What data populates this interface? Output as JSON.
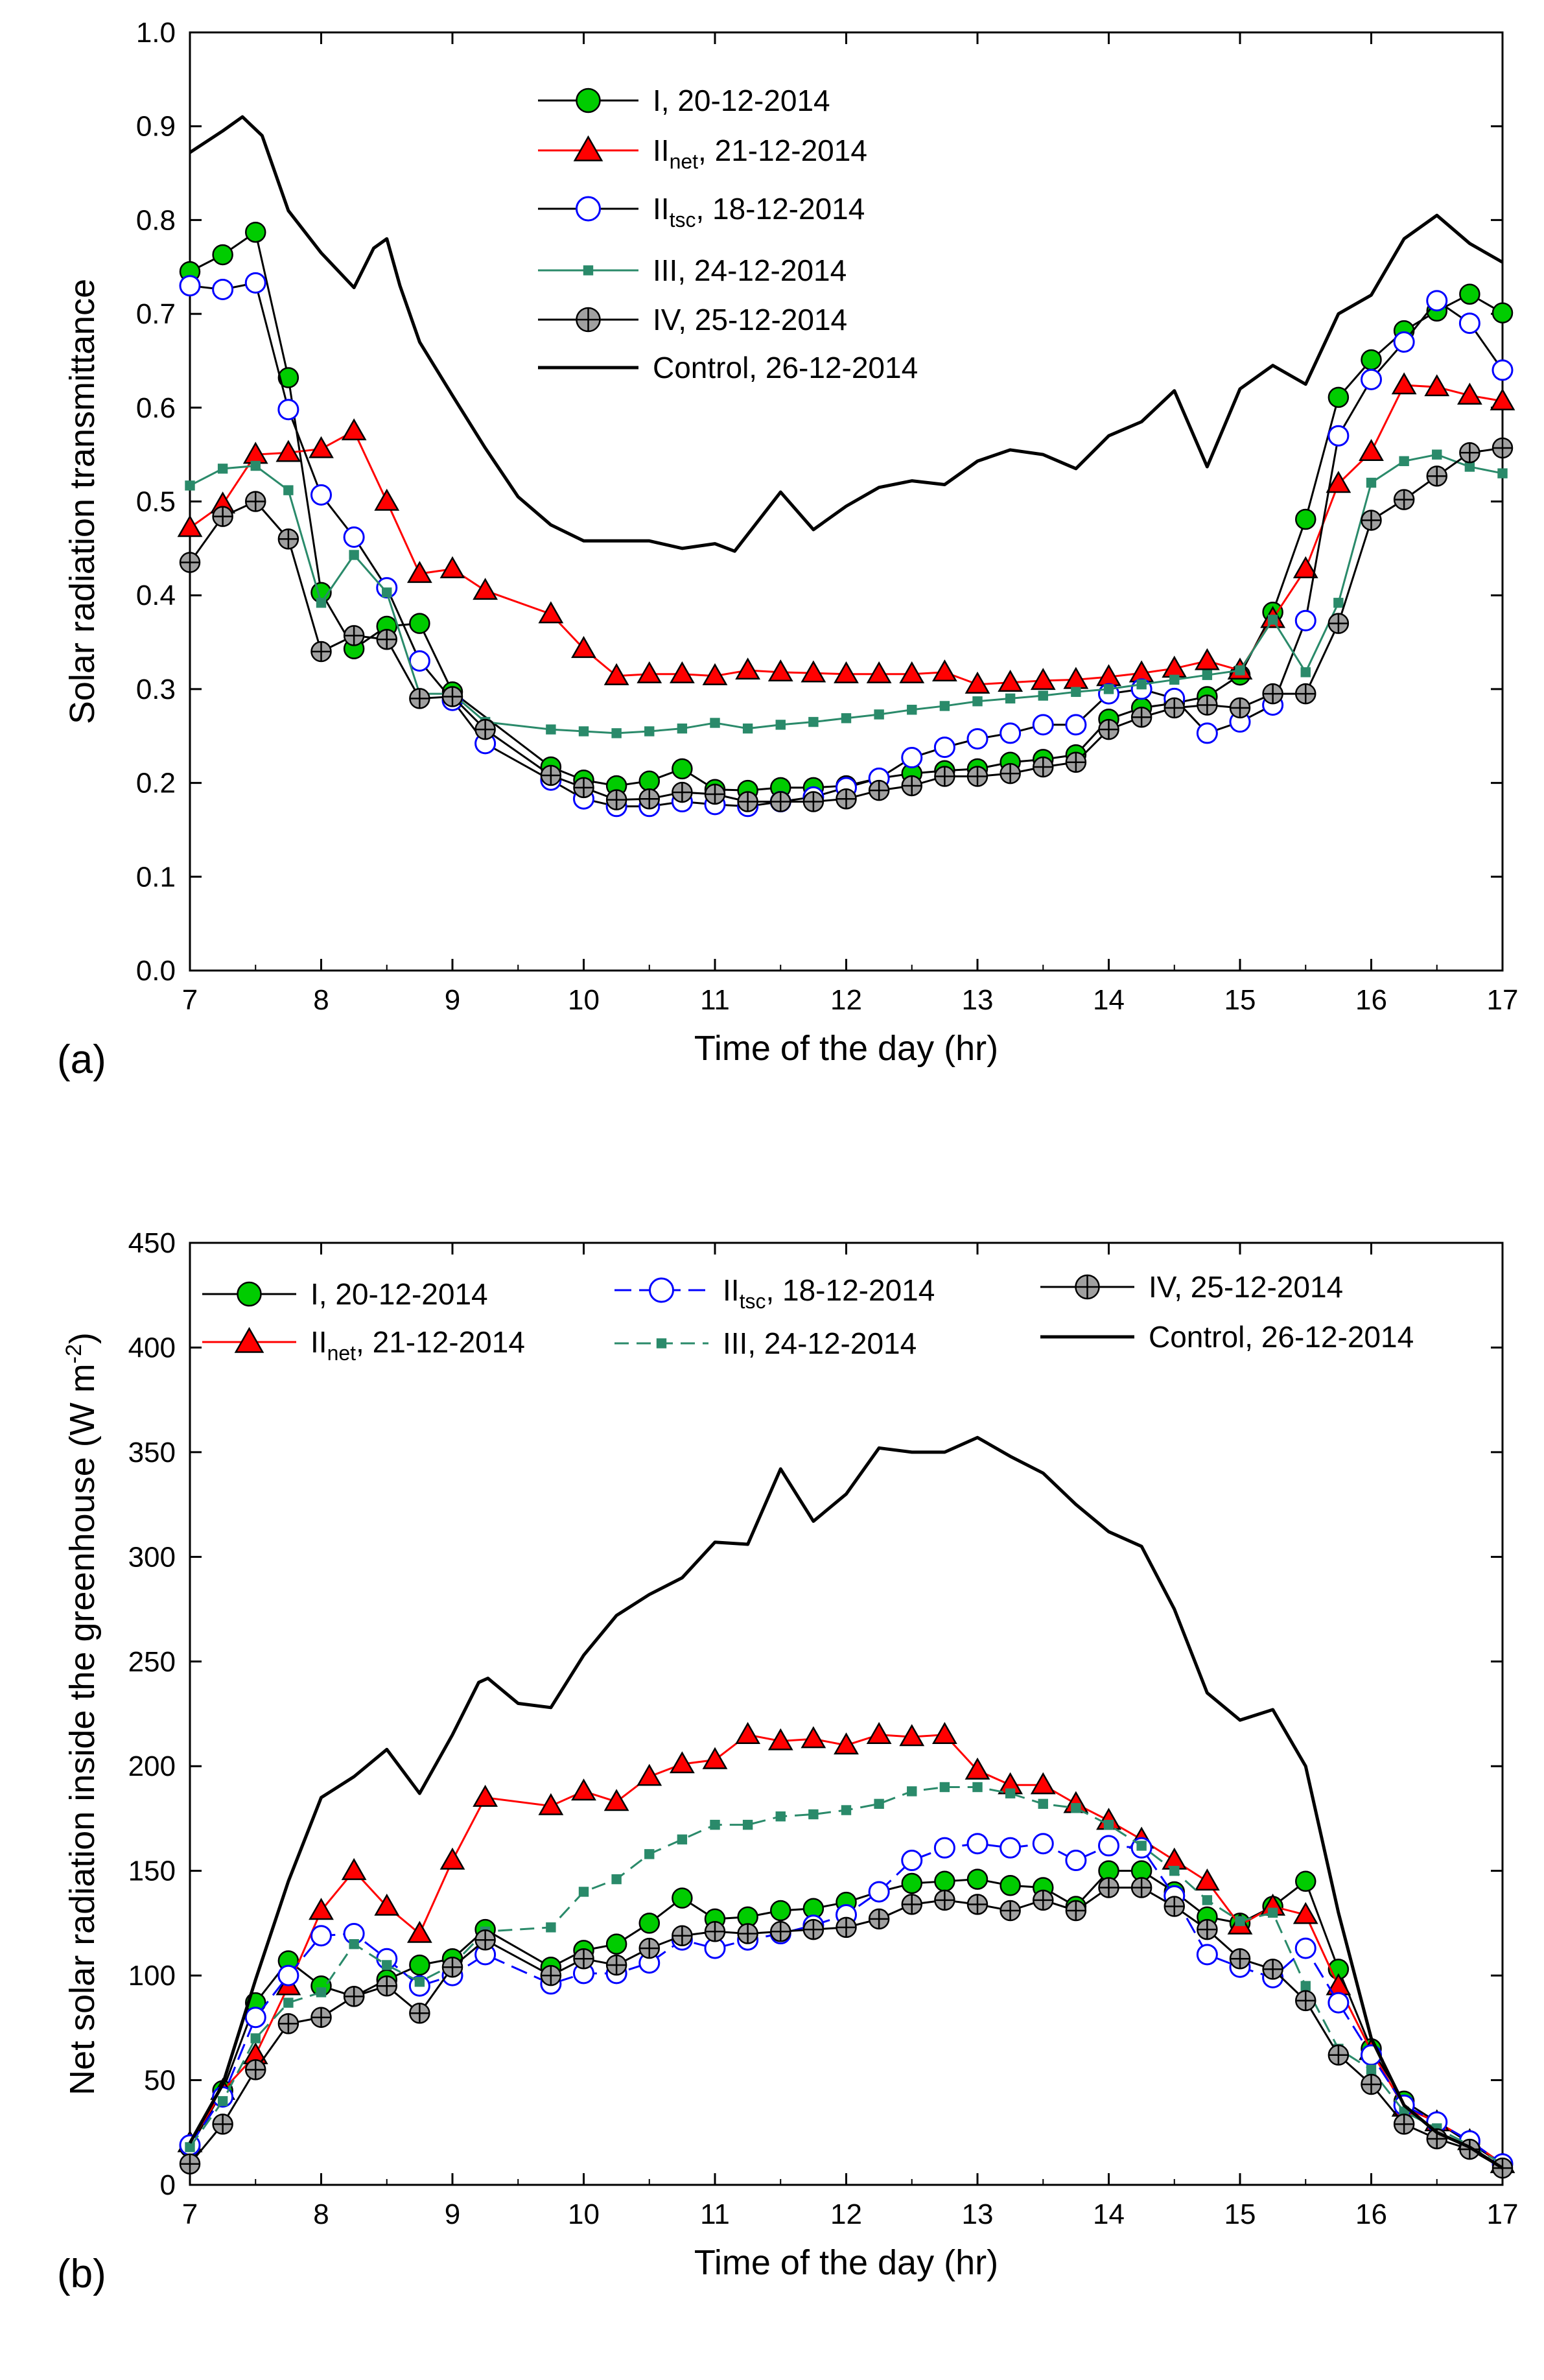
{
  "chart_data": [
    {
      "type": "line",
      "panel_label": "(a)",
      "xlabel": "Time of the day (hr)",
      "ylabel": "Solar radiation transmittance",
      "xlim": [
        7,
        17
      ],
      "ylim": [
        0,
        1.0
      ],
      "xticks": [
        "7",
        "8",
        "9",
        "10",
        "11",
        "12",
        "13",
        "14",
        "15",
        "16",
        "17"
      ],
      "yticks": [
        "0.0",
        "0.1",
        "0.2",
        "0.3",
        "0.4",
        "0.5",
        "0.6",
        "0.7",
        "0.8",
        "0.9",
        "1.0"
      ],
      "legend_position": "top-center",
      "x": [
        7,
        7.25,
        7.5,
        7.75,
        8,
        8.25,
        8.5,
        8.75,
        9,
        9.25,
        9.5,
        9.75,
        10,
        10.25,
        10.5,
        10.75,
        11,
        11.25,
        11.5,
        11.75,
        12,
        12.25,
        12.5,
        12.75,
        13,
        13.25,
        13.5,
        13.75,
        14,
        14.25,
        14.5,
        14.75,
        15,
        15.25,
        15.5,
        15.75,
        16,
        16.25,
        16.5,
        16.75,
        17
      ],
      "series": [
        {
          "name": "I, 20-12-2014",
          "name_main": "I",
          "name_sub": "",
          "name_rest": ", 20-12-2014",
          "style": "circle-green",
          "color": "#00cc00",
          "values": [
            0.745,
            0.763,
            0.787,
            0.632,
            0.403,
            0.343,
            0.367,
            0.37,
            0.297,
            null,
            null,
            0.217,
            0.203,
            0.197,
            0.202,
            0.215,
            0.193,
            0.192,
            0.195,
            0.195,
            0.197,
            0.205,
            0.21,
            0.213,
            0.215,
            0.222,
            0.225,
            0.23,
            0.268,
            0.28,
            0.285,
            0.292,
            0.315,
            0.382,
            0.481,
            0.611,
            0.651,
            0.682,
            0.703,
            0.721,
            0.701
          ]
        },
        {
          "name": "IInet, 21-12-2014",
          "name_main": "II",
          "name_sub": "net",
          "name_rest": ", 21-12-2014",
          "style": "triangle-red",
          "color": "#ff0000",
          "values": [
            0.472,
            0.497,
            0.55,
            0.552,
            0.556,
            0.575,
            0.5,
            0.423,
            0.428,
            0.405,
            null,
            0.38,
            0.343,
            0.314,
            0.316,
            0.316,
            0.314,
            0.32,
            0.318,
            0.317,
            0.316,
            0.316,
            0.316,
            0.318,
            0.305,
            0.307,
            0.309,
            0.31,
            0.313,
            0.317,
            0.322,
            0.33,
            0.32,
            0.375,
            0.428,
            0.519,
            0.553,
            0.624,
            0.622,
            0.613,
            0.607
          ]
        },
        {
          "name": "IItsc, 18-12-2014",
          "name_main": "II",
          "name_sub": "tsc",
          "name_rest": ", 18-12-2014",
          "style": "circle-open-blue",
          "color": "#0000ff",
          "values": [
            0.73,
            0.726,
            0.733,
            0.598,
            0.507,
            0.462,
            0.408,
            0.33,
            0.288,
            0.242,
            null,
            0.203,
            0.183,
            0.175,
            0.175,
            0.18,
            0.177,
            0.175,
            0.18,
            0.185,
            0.195,
            0.205,
            0.227,
            0.238,
            0.247,
            0.253,
            0.262,
            0.262,
            0.295,
            0.3,
            0.29,
            0.253,
            0.265,
            0.283,
            0.373,
            0.57,
            0.63,
            0.67,
            0.714,
            0.69,
            0.64
          ]
        },
        {
          "name": "III, 24-12-2014",
          "name_main": "III",
          "name_sub": "",
          "name_rest": ", 24-12-2014",
          "style": "square-teal",
          "color": "#2a8a6a",
          "values": [
            0.517,
            0.535,
            0.538,
            0.512,
            0.392,
            0.443,
            0.403,
            0.295,
            0.295,
            0.265,
            null,
            0.257,
            0.255,
            0.253,
            0.255,
            0.258,
            0.264,
            0.258,
            0.262,
            0.265,
            0.269,
            0.273,
            0.278,
            0.282,
            0.287,
            0.29,
            0.293,
            0.297,
            0.3,
            0.305,
            0.31,
            0.315,
            0.32,
            0.374,
            0.318,
            0.392,
            0.52,
            0.543,
            0.55,
            0.537,
            0.53
          ]
        },
        {
          "name": "IV, 25-12-2014",
          "name_main": "IV",
          "name_sub": "",
          "name_rest": ", 25-12-2014",
          "style": "circle-cross-gray",
          "color": "#a0a0a0",
          "values": [
            0.435,
            0.484,
            0.5,
            0.46,
            0.34,
            0.357,
            0.353,
            0.29,
            0.292,
            0.257,
            null,
            0.208,
            0.195,
            0.182,
            0.183,
            0.19,
            0.188,
            0.18,
            0.18,
            0.18,
            0.183,
            0.192,
            0.197,
            0.207,
            0.207,
            0.21,
            0.217,
            0.222,
            0.257,
            0.27,
            0.28,
            0.283,
            0.28,
            0.295,
            0.295,
            0.37,
            0.48,
            0.502,
            0.527,
            0.552,
            0.557
          ]
        },
        {
          "name": "Control, 26-12-2014",
          "name_main": "Control",
          "name_sub": "",
          "name_rest": ", 26-12-2014",
          "style": "line-black",
          "color": "#000000",
          "x": [
            7,
            7.25,
            7.4,
            7.55,
            7.75,
            8,
            8.25,
            8.4,
            8.5,
            8.6,
            8.75,
            9,
            9.25,
            9.5,
            9.75,
            10,
            10.25,
            10.5,
            10.75,
            11,
            11.15,
            11.25,
            11.5,
            11.75,
            12,
            12.25,
            12.5,
            12.75,
            13,
            13.25,
            13.5,
            13.75,
            14,
            14.25,
            14.5,
            14.75,
            15,
            15.25,
            15.5,
            15.75,
            16,
            16.25,
            16.5,
            16.75,
            17
          ],
          "values": [
            0.872,
            0.895,
            0.91,
            0.89,
            0.81,
            0.765,
            0.728,
            0.77,
            0.78,
            0.73,
            0.67,
            0.613,
            0.557,
            0.505,
            0.475,
            0.458,
            0.458,
            0.458,
            0.45,
            0.455,
            0.447,
            0.465,
            0.51,
            0.47,
            0.495,
            0.515,
            0.522,
            0.518,
            0.543,
            0.555,
            0.55,
            0.535,
            0.57,
            0.585,
            0.618,
            0.537,
            0.62,
            0.645,
            0.625,
            0.7,
            0.72,
            0.78,
            0.805,
            0.775,
            0.755
          ]
        }
      ]
    },
    {
      "type": "line",
      "panel_label": "(b)",
      "xlabel": "Time of the day (hr)",
      "ylabel_main": "Net solar radiation inside the greenhouse (W m",
      "ylabel_sup": "-2",
      "ylabel_end": ")",
      "xlim": [
        7,
        17
      ],
      "ylim": [
        0,
        450
      ],
      "xticks": [
        "7",
        "8",
        "9",
        "10",
        "11",
        "12",
        "13",
        "14",
        "15",
        "16",
        "17"
      ],
      "yticks": [
        "0",
        "50",
        "100",
        "150",
        "200",
        "250",
        "300",
        "350",
        "400",
        "450"
      ],
      "legend_position": "top",
      "x": [
        7,
        7.25,
        7.5,
        7.75,
        8,
        8.25,
        8.5,
        8.75,
        9,
        9.25,
        9.5,
        9.75,
        10,
        10.25,
        10.5,
        10.75,
        11,
        11.25,
        11.5,
        11.75,
        12,
        12.25,
        12.5,
        12.75,
        13,
        13.25,
        13.5,
        13.75,
        14,
        14.25,
        14.5,
        14.75,
        15,
        15.25,
        15.5,
        15.75,
        16,
        16.25,
        16.5,
        16.75,
        17
      ],
      "series": [
        {
          "name": "I, 20-12-2014",
          "name_main": "I",
          "name_sub": "",
          "name_rest": ", 20-12-2014",
          "style": "circle-green",
          "color": "#00cc00",
          "values": [
            18,
            45,
            87,
            107,
            95,
            90,
            98,
            105,
            108,
            122,
            null,
            104,
            112,
            115,
            125,
            137,
            127,
            128,
            131,
            132,
            135,
            140,
            144,
            145,
            146,
            143,
            142,
            133,
            150,
            150,
            140,
            128,
            125,
            133,
            145,
            103,
            65,
            40,
            30,
            20,
            10
          ]
        },
        {
          "name": "IInet, 21-12-2014",
          "name_main": "II",
          "name_sub": "net",
          "name_rest": ", 21-12-2014",
          "style": "triangle-red",
          "color": "#ff0000",
          "values": [
            20,
            45,
            62,
            95,
            131,
            150,
            133,
            120,
            155,
            185,
            null,
            181,
            188,
            183,
            195,
            201,
            203,
            215,
            212,
            213,
            210,
            215,
            214,
            215,
            198,
            191,
            191,
            182,
            174,
            165,
            155,
            145,
            124,
            133,
            129,
            95,
            64,
            37,
            30,
            21,
            10
          ]
        },
        {
          "name": "IItsc, 18-12-2014",
          "name_main": "II",
          "name_sub": "tsc",
          "name_rest": ", 18-12-2014",
          "style": "circle-open-blue",
          "color": "#0000ff",
          "values": [
            19,
            42,
            80,
            100,
            119,
            120,
            108,
            95,
            100,
            110,
            null,
            96,
            101,
            101,
            106,
            117,
            113,
            117,
            120,
            124,
            129,
            140,
            155,
            161,
            163,
            161,
            163,
            155,
            162,
            161,
            138,
            110,
            104,
            99,
            113,
            87,
            62,
            38,
            30,
            21,
            10
          ]
        },
        {
          "name": "III, 24-12-2014",
          "name_main": "III",
          "name_sub": "",
          "name_rest": ", 24-12-2014",
          "style": "square-teal",
          "color": "#2a8a6a",
          "values": [
            18,
            40,
            70,
            87,
            92,
            115,
            105,
            97,
            105,
            121,
            null,
            123,
            140,
            146,
            158,
            165,
            172,
            172,
            176,
            177,
            179,
            182,
            188,
            190,
            190,
            187,
            182,
            180,
            172,
            162,
            150,
            136,
            126,
            130,
            95,
            65,
            55,
            35,
            27,
            19,
            10
          ]
        },
        {
          "name": "IV, 25-12-2014",
          "name_main": "IV",
          "name_sub": "",
          "name_rest": ", 25-12-2014",
          "style": "circle-cross-gray",
          "color": "#a0a0a0",
          "values": [
            10,
            29,
            55,
            77,
            80,
            90,
            95,
            82,
            104,
            117,
            null,
            100,
            108,
            105,
            113,
            119,
            121,
            120,
            121,
            122,
            123,
            127,
            134,
            136,
            134,
            131,
            136,
            131,
            142,
            142,
            133,
            122,
            108,
            103,
            88,
            62,
            48,
            29,
            22,
            17,
            8
          ]
        },
        {
          "name": "Control, 26-12-2014",
          "name_main": "Control",
          "name_sub": "",
          "name_rest": ", 26-12-2014",
          "style": "line-black",
          "color": "#000000",
          "x": [
            7,
            7.25,
            7.5,
            7.75,
            8,
            8.25,
            8.5,
            8.75,
            9,
            9.2,
            9.27,
            9.5,
            9.75,
            10,
            10.25,
            10.5,
            10.75,
            11,
            11.25,
            11.5,
            11.75,
            12,
            12.25,
            12.5,
            12.75,
            13,
            13.25,
            13.5,
            13.75,
            14,
            14.25,
            14.5,
            14.75,
            15,
            15.25,
            15.5,
            15.75,
            16,
            16.25,
            16.5,
            16.75,
            17
          ],
          "values": [
            20,
            48,
            98,
            145,
            185,
            195,
            208,
            187,
            215,
            240,
            242,
            230,
            228,
            253,
            272,
            282,
            290,
            307,
            306,
            342,
            317,
            330,
            352,
            350,
            350,
            357,
            348,
            340,
            325,
            312,
            305,
            275,
            235,
            222,
            227,
            200,
            130,
            70,
            38,
            25,
            18,
            8
          ]
        }
      ]
    }
  ]
}
